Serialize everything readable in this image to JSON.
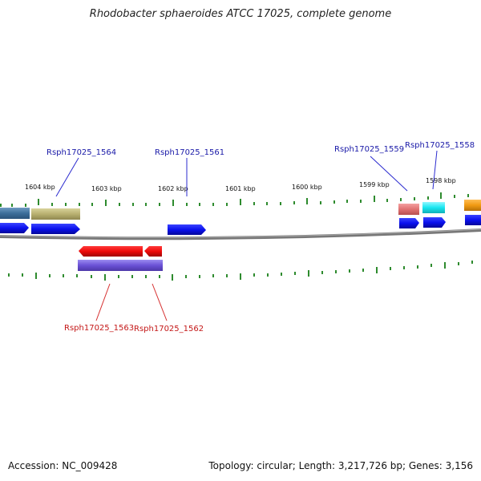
{
  "title": "Rhodobacter sphaeroides ATCC 17025, complete genome",
  "footer": {
    "accession": "Accession: NC_009428",
    "summary": "Topology: circular; Length: 3,217,726 bp; Genes: 3,156"
  },
  "scale_labels": [
    "1604 kbp",
    "1603 kbp",
    "1602 kbp",
    "1601 kbp",
    "1600 kbp",
    "1599 kbp",
    "1598 kbp"
  ],
  "gene_labels": {
    "top": [
      "Rsph17025_1564",
      "Rsph17025_1561",
      "Rsph17025_1559",
      "Rsph17025_1558"
    ],
    "bottom": [
      "Rsph17025_1563",
      "Rsph17025_1562"
    ]
  },
  "colors": {
    "backbone": "#777777",
    "ticks": "#2e8b2e",
    "forward_cds": "#0a10ee",
    "reverse_cds": "#ee0a0a",
    "label_blue": "#1a1aa8",
    "label_red": "#c41818"
  }
}
